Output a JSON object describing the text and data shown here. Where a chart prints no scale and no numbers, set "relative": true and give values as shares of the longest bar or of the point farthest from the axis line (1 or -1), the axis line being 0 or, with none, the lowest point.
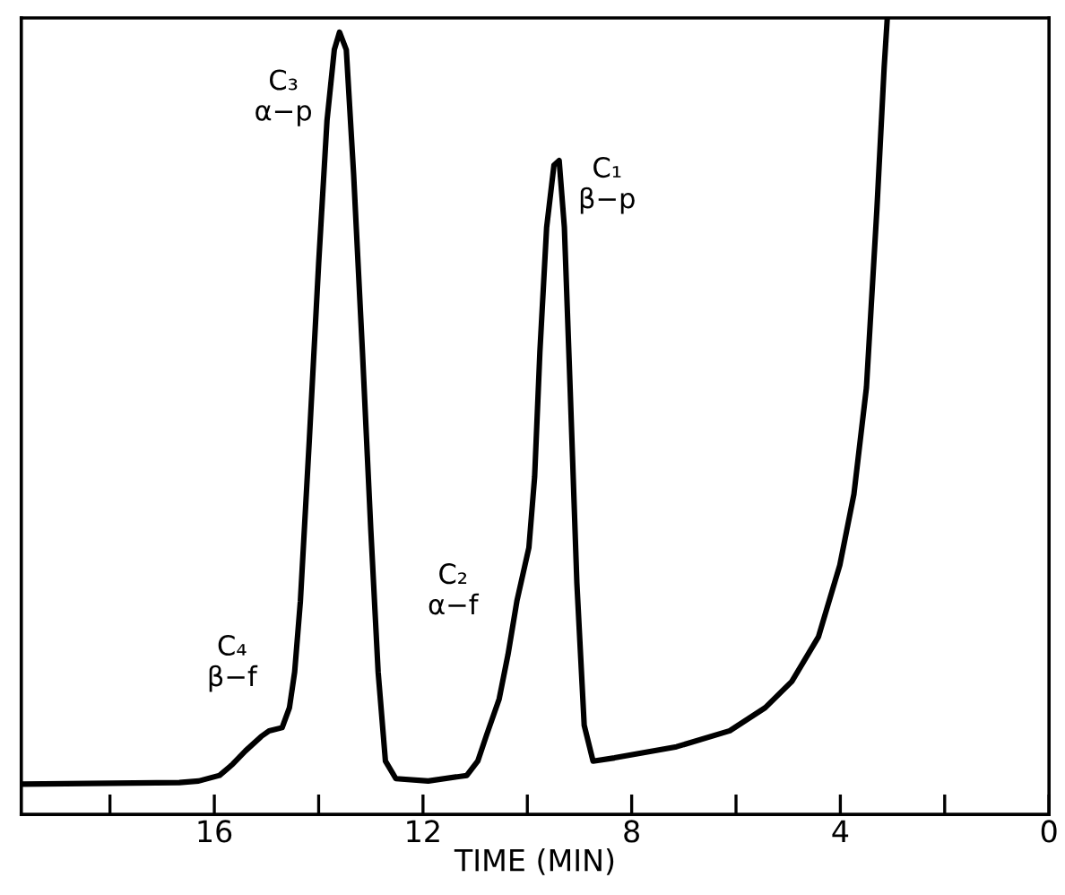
{
  "chart_data": {
    "type": "line",
    "xlabel": "TIME (MIN)",
    "relative": true,
    "xlim": [
      19.7,
      0
    ],
    "xticks": [
      {
        "value": 18,
        "label": null
      },
      16,
      {
        "value": 14,
        "label": null
      },
      12,
      {
        "value": 10,
        "label": null
      },
      8,
      {
        "value": 6,
        "label": null
      },
      4,
      {
        "value": 2,
        "label": null
      },
      0
    ],
    "x": [
      19.7,
      16.67,
      16.3,
      15.9,
      15.65,
      15.4,
      15.1,
      14.95,
      14.7,
      14.56,
      14.46,
      14.35,
      14.18,
      14.0,
      13.84,
      13.7,
      13.6,
      13.47,
      13.33,
      13.16,
      13.0,
      12.86,
      12.72,
      12.52,
      11.9,
      11.16,
      10.95,
      10.78,
      10.54,
      10.37,
      10.2,
      9.97,
      9.86,
      9.76,
      9.63,
      9.49,
      9.39,
      9.29,
      9.18,
      9.05,
      8.91,
      8.74,
      8.33,
      7.14,
      6.12,
      5.44,
      4.93,
      4.42,
      4.01,
      3.74,
      3.5,
      3.3,
      3.16,
      3.1
    ],
    "series": [
      {
        "color": "#000000",
        "values": [
          0.038,
          0.04,
          0.042,
          0.049,
          0.063,
          0.08,
          0.098,
          0.105,
          0.109,
          0.134,
          0.179,
          0.268,
          0.469,
          0.692,
          0.871,
          0.96,
          0.982,
          0.96,
          0.804,
          0.58,
          0.357,
          0.179,
          0.067,
          0.045,
          0.042,
          0.049,
          0.067,
          0.1,
          0.145,
          0.201,
          0.268,
          0.335,
          0.424,
          0.58,
          0.737,
          0.815,
          0.821,
          0.737,
          0.536,
          0.29,
          0.112,
          0.067,
          0.071,
          0.085,
          0.105,
          0.134,
          0.167,
          0.223,
          0.313,
          0.402,
          0.536,
          0.759,
          0.938,
          1.0
        ]
      }
    ],
    "annotations": [
      "C₃\nα−p",
      "C₁\nβ−p",
      "C₂\nα−f",
      "C₄\nβ−f"
    ],
    "grid": false,
    "legend": false,
    "marker": "none",
    "line_style": "solid"
  }
}
